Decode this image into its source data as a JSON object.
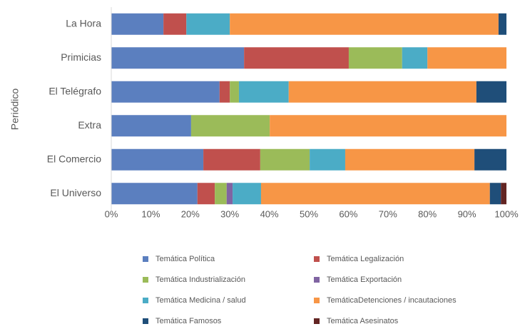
{
  "chart_data": {
    "type": "stacked_barh",
    "y_label": "Periódico",
    "categories": [
      "La Hora",
      "Primicias",
      "El Telégrafo",
      "Extra",
      "El Comercio",
      "El Universo"
    ],
    "series": [
      {
        "name": "Temática Política",
        "color": "#5b7fbf",
        "values": [
          13.2,
          33.6,
          27.4,
          20.2,
          23.3,
          21.8
        ]
      },
      {
        "name": "Temática Legalización",
        "color": "#c0504d",
        "values": [
          5.8,
          26.5,
          2.6,
          0,
          14.4,
          4.4
        ]
      },
      {
        "name": "Temática Industrialización",
        "color": "#9bbb59",
        "values": [
          0,
          13.5,
          2.3,
          19.9,
          12.5,
          3
        ]
      },
      {
        "name": "Temática Exportación",
        "color": "#8064a2",
        "values": [
          0,
          0,
          0,
          0,
          0,
          1.5
        ]
      },
      {
        "name": "Temática Medicina / salud",
        "color": "#4bacc6",
        "values": [
          11,
          6.4,
          12.6,
          0,
          9,
          7.2
        ]
      },
      {
        "name": "TemáticaDetenciones / incautaciones",
        "color": "#f79646",
        "values": [
          68,
          20,
          47.5,
          59.9,
          32.7,
          57.9
        ]
      },
      {
        "name": "Temática Famosos",
        "color": "#1f4e79",
        "values": [
          2,
          0,
          7.6,
          0,
          8.1,
          2.8
        ]
      },
      {
        "name": "Temática Asesinatos",
        "color": "#632523",
        "values": [
          0,
          0,
          0,
          0,
          0,
          1.4
        ]
      }
    ],
    "xlim": [
      0,
      100
    ],
    "xticks": [
      {
        "value": 0,
        "label": "0%"
      },
      {
        "value": 10,
        "label": "10%"
      },
      {
        "value": 20,
        "label": "20%"
      },
      {
        "value": 30,
        "label": "30%"
      },
      {
        "value": 40,
        "label": "40%"
      },
      {
        "value": 50,
        "label": "50%"
      },
      {
        "value": 60,
        "label": "60%"
      },
      {
        "value": 70,
        "label": "70%"
      },
      {
        "value": 80,
        "label": "80%"
      },
      {
        "value": 90,
        "label": "90%"
      },
      {
        "value": 100,
        "label": "100%"
      }
    ],
    "grid": false,
    "legend": "bottom"
  }
}
